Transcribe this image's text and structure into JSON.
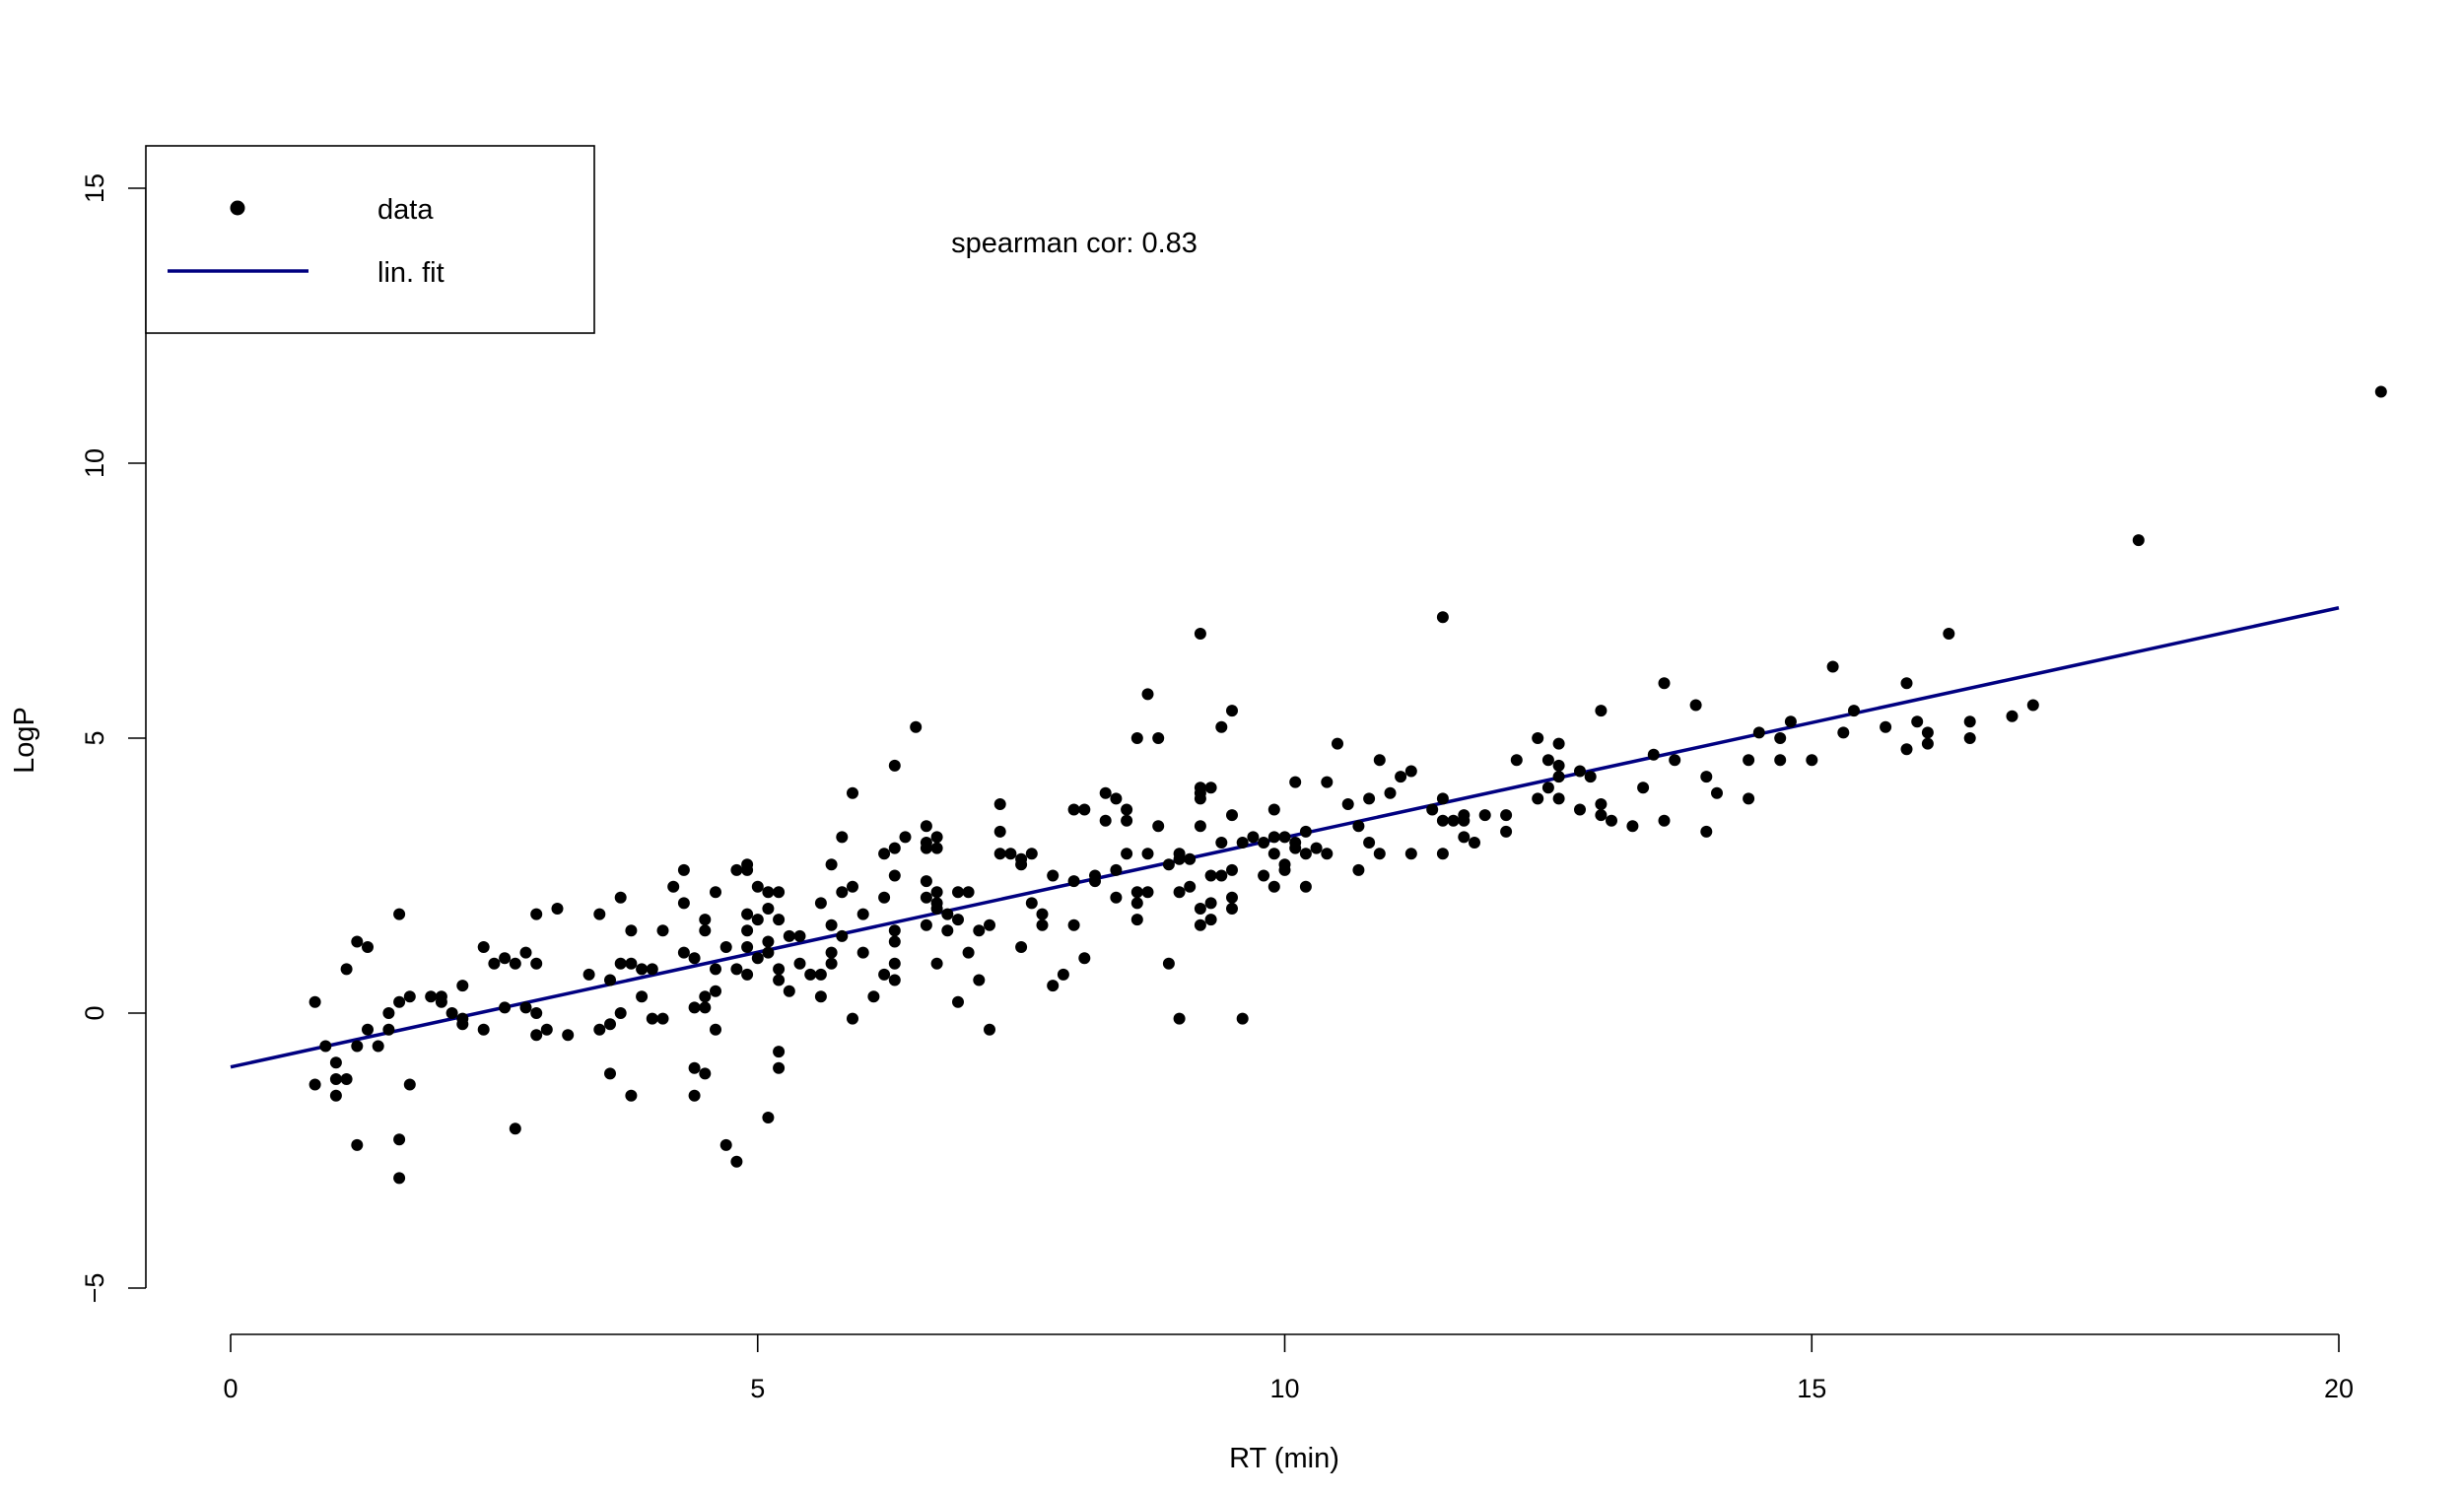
{
  "chart_data": {
    "type": "scatter",
    "title": "",
    "xlabel": "RT (min)",
    "ylabel": "LogP",
    "xlim": [
      0,
      20
    ],
    "ylim": [
      -5,
      15
    ],
    "x_ticks": [
      "0",
      "5",
      "10",
      "15",
      "20"
    ],
    "y_ticks": [
      "-5",
      "0",
      "5",
      "10",
      "15"
    ],
    "grid": false,
    "legend": {
      "placement": "top-left",
      "entries": [
        {
          "label": "data",
          "symbol": "point"
        },
        {
          "label": "lin. fit",
          "symbol": "line"
        }
      ]
    },
    "annotation": "spearman cor: 0.83",
    "series": [
      {
        "name": "data",
        "kind": "points",
        "color": "#000000",
        "points": [
          [
            0.8,
            0.2
          ],
          [
            0.8,
            -1.3
          ],
          [
            0.9,
            -0.6
          ],
          [
            1.0,
            -0.9
          ],
          [
            1.0,
            -1.5
          ],
          [
            1.0,
            -1.2
          ],
          [
            1.1,
            0.8
          ],
          [
            1.1,
            -1.2
          ],
          [
            1.2,
            1.3
          ],
          [
            1.2,
            -0.6
          ],
          [
            1.2,
            -2.4
          ],
          [
            1.3,
            1.2
          ],
          [
            1.3,
            -0.3
          ],
          [
            1.4,
            -0.6
          ],
          [
            1.5,
            0.0
          ],
          [
            1.5,
            -0.3
          ],
          [
            1.6,
            1.8
          ],
          [
            1.6,
            0.2
          ],
          [
            1.6,
            -2.3
          ],
          [
            1.6,
            -3.0
          ],
          [
            1.7,
            0.3
          ],
          [
            1.7,
            -1.3
          ],
          [
            1.9,
            0.3
          ],
          [
            2.0,
            0.3
          ],
          [
            2.0,
            0.2
          ],
          [
            2.1,
            0.0
          ],
          [
            2.2,
            0.5
          ],
          [
            2.2,
            -0.1
          ],
          [
            2.2,
            -0.2
          ],
          [
            2.4,
            1.2
          ],
          [
            2.4,
            -0.3
          ],
          [
            2.5,
            0.9
          ],
          [
            2.6,
            1.0
          ],
          [
            2.6,
            0.1
          ],
          [
            2.7,
            0.9
          ],
          [
            2.7,
            -2.1
          ],
          [
            2.8,
            1.1
          ],
          [
            2.8,
            0.1
          ],
          [
            2.9,
            1.8
          ],
          [
            2.9,
            0.9
          ],
          [
            2.9,
            0.0
          ],
          [
            2.9,
            -0.4
          ],
          [
            3.0,
            -0.3
          ],
          [
            3.1,
            1.9
          ],
          [
            3.2,
            -0.4
          ],
          [
            3.4,
            0.7
          ],
          [
            3.5,
            1.8
          ],
          [
            3.5,
            -0.3
          ],
          [
            3.6,
            0.6
          ],
          [
            3.6,
            -1.1
          ],
          [
            3.6,
            -0.2
          ],
          [
            3.7,
            2.1
          ],
          [
            3.7,
            0.9
          ],
          [
            3.7,
            0.0
          ],
          [
            3.8,
            0.9
          ],
          [
            3.8,
            1.5
          ],
          [
            3.8,
            -1.5
          ],
          [
            3.9,
            0.8
          ],
          [
            3.9,
            0.3
          ],
          [
            4.0,
            0.8
          ],
          [
            4.0,
            -0.1
          ],
          [
            4.1,
            1.5
          ],
          [
            4.1,
            -0.1
          ],
          [
            4.2,
            2.3
          ],
          [
            4.3,
            2.6
          ],
          [
            4.3,
            1.1
          ],
          [
            4.3,
            2.0
          ],
          [
            4.4,
            1.0
          ],
          [
            4.4,
            0.1
          ],
          [
            4.4,
            -1.0
          ],
          [
            4.4,
            -1.5
          ],
          [
            4.5,
            1.7
          ],
          [
            4.5,
            1.5
          ],
          [
            4.5,
            0.3
          ],
          [
            4.5,
            0.1
          ],
          [
            4.5,
            -1.1
          ],
          [
            4.6,
            2.2
          ],
          [
            4.6,
            0.8
          ],
          [
            4.6,
            0.4
          ],
          [
            4.6,
            -0.3
          ],
          [
            4.7,
            1.2
          ],
          [
            4.7,
            -2.4
          ],
          [
            4.8,
            2.6
          ],
          [
            4.8,
            0.8
          ],
          [
            4.8,
            -2.7
          ],
          [
            4.9,
            2.7
          ],
          [
            4.9,
            2.6
          ],
          [
            4.9,
            1.8
          ],
          [
            4.9,
            1.5
          ],
          [
            4.9,
            1.2
          ],
          [
            4.9,
            0.7
          ],
          [
            5.0,
            2.3
          ],
          [
            5.0,
            1.7
          ],
          [
            5.0,
            1.0
          ],
          [
            5.1,
            2.2
          ],
          [
            5.1,
            1.9
          ],
          [
            5.1,
            1.3
          ],
          [
            5.1,
            1.1
          ],
          [
            5.1,
            -1.9
          ],
          [
            5.2,
            2.2
          ],
          [
            5.2,
            1.7
          ],
          [
            5.2,
            0.8
          ],
          [
            5.2,
            0.6
          ],
          [
            5.2,
            -0.7
          ],
          [
            5.2,
            -1.0
          ],
          [
            5.3,
            1.4
          ],
          [
            5.3,
            0.4
          ],
          [
            5.4,
            1.4
          ],
          [
            5.4,
            0.9
          ],
          [
            5.5,
            0.7
          ],
          [
            5.6,
            2.0
          ],
          [
            5.6,
            0.7
          ],
          [
            5.6,
            0.3
          ],
          [
            5.7,
            1.6
          ],
          [
            5.7,
            1.1
          ],
          [
            5.7,
            0.9
          ],
          [
            5.7,
            2.7
          ],
          [
            5.8,
            3.2
          ],
          [
            5.8,
            2.2
          ],
          [
            5.8,
            1.4
          ],
          [
            5.9,
            4.0
          ],
          [
            5.9,
            2.3
          ],
          [
            5.9,
            -0.1
          ],
          [
            6.0,
            1.8
          ],
          [
            6.0,
            1.1
          ],
          [
            6.1,
            0.3
          ],
          [
            6.2,
            2.9
          ],
          [
            6.2,
            2.1
          ],
          [
            6.2,
            0.7
          ],
          [
            6.3,
            4.5
          ],
          [
            6.3,
            3.0
          ],
          [
            6.3,
            2.5
          ],
          [
            6.3,
            1.5
          ],
          [
            6.3,
            1.3
          ],
          [
            6.3,
            0.9
          ],
          [
            6.3,
            0.6
          ],
          [
            6.4,
            3.2
          ],
          [
            6.5,
            5.2
          ],
          [
            6.6,
            3.4
          ],
          [
            6.6,
            3.1
          ],
          [
            6.6,
            2.4
          ],
          [
            6.6,
            2.1
          ],
          [
            6.6,
            1.6
          ],
          [
            6.6,
            3.0
          ],
          [
            6.7,
            3.2
          ],
          [
            6.7,
            3.0
          ],
          [
            6.7,
            2.2
          ],
          [
            6.7,
            2.0
          ],
          [
            6.7,
            1.9
          ],
          [
            6.7,
            0.9
          ],
          [
            6.8,
            1.5
          ],
          [
            6.8,
            1.8
          ],
          [
            6.9,
            2.2
          ],
          [
            6.9,
            0.2
          ],
          [
            6.9,
            1.7
          ],
          [
            7.0,
            2.2
          ],
          [
            7.0,
            1.1
          ],
          [
            7.1,
            0.6
          ],
          [
            7.1,
            1.5
          ],
          [
            7.2,
            1.6
          ],
          [
            7.2,
            -0.3
          ],
          [
            7.3,
            3.8
          ],
          [
            7.3,
            3.3
          ],
          [
            7.3,
            2.9
          ],
          [
            7.4,
            2.9
          ],
          [
            7.5,
            2.8
          ],
          [
            7.5,
            2.7
          ],
          [
            7.5,
            1.2
          ],
          [
            7.6,
            2.9
          ],
          [
            7.6,
            2.0
          ],
          [
            7.7,
            1.6
          ],
          [
            7.7,
            1.8
          ],
          [
            7.8,
            2.5
          ],
          [
            7.8,
            0.5
          ],
          [
            7.9,
            0.7
          ],
          [
            8.0,
            3.7
          ],
          [
            8.0,
            1.6
          ],
          [
            8.0,
            2.4
          ],
          [
            8.1,
            3.7
          ],
          [
            8.1,
            1.0
          ],
          [
            8.2,
            2.5
          ],
          [
            8.2,
            2.4
          ],
          [
            8.3,
            4.0
          ],
          [
            8.3,
            3.5
          ],
          [
            8.4,
            3.9
          ],
          [
            8.4,
            2.6
          ],
          [
            8.4,
            2.1
          ],
          [
            8.5,
            3.7
          ],
          [
            8.5,
            3.5
          ],
          [
            8.5,
            2.9
          ],
          [
            8.6,
            5.0
          ],
          [
            8.6,
            2.2
          ],
          [
            8.6,
            2.0
          ],
          [
            8.6,
            1.7
          ],
          [
            8.7,
            5.8
          ],
          [
            8.7,
            2.9
          ],
          [
            8.7,
            2.2
          ],
          [
            8.8,
            5.0
          ],
          [
            8.8,
            3.4
          ],
          [
            8.9,
            2.7
          ],
          [
            8.9,
            0.9
          ],
          [
            9.0,
            2.9
          ],
          [
            9.0,
            2.8
          ],
          [
            9.0,
            2.2
          ],
          [
            9.0,
            -0.1
          ],
          [
            9.1,
            2.8
          ],
          [
            9.1,
            2.3
          ],
          [
            9.2,
            6.9
          ],
          [
            9.2,
            4.1
          ],
          [
            9.2,
            3.9
          ],
          [
            9.2,
            4.0
          ],
          [
            9.2,
            3.4
          ],
          [
            9.2,
            1.9
          ],
          [
            9.2,
            1.6
          ],
          [
            9.3,
            4.1
          ],
          [
            9.3,
            2.5
          ],
          [
            9.3,
            2.0
          ],
          [
            9.3,
            1.7
          ],
          [
            9.4,
            5.2
          ],
          [
            9.4,
            3.1
          ],
          [
            9.4,
            2.5
          ],
          [
            9.5,
            5.5
          ],
          [
            9.5,
            3.6
          ],
          [
            9.5,
            2.6
          ],
          [
            9.5,
            2.1
          ],
          [
            9.5,
            1.9
          ],
          [
            9.6,
            -0.1
          ],
          [
            9.6,
            3.1
          ],
          [
            9.7,
            3.2
          ],
          [
            9.8,
            2.5
          ],
          [
            9.8,
            3.1
          ],
          [
            9.9,
            3.7
          ],
          [
            9.9,
            3.2
          ],
          [
            9.9,
            2.3
          ],
          [
            9.9,
            2.9
          ],
          [
            10.0,
            3.2
          ],
          [
            10.0,
            2.7
          ],
          [
            10.0,
            2.6
          ],
          [
            10.1,
            4.2
          ],
          [
            10.1,
            3.1
          ],
          [
            10.1,
            3.0
          ],
          [
            10.2,
            3.3
          ],
          [
            10.2,
            2.9
          ],
          [
            10.2,
            2.3
          ],
          [
            10.3,
            3.0
          ],
          [
            10.4,
            4.2
          ],
          [
            10.4,
            2.9
          ],
          [
            10.5,
            4.9
          ],
          [
            10.6,
            3.8
          ],
          [
            10.7,
            3.4
          ],
          [
            10.7,
            2.6
          ],
          [
            10.8,
            3.9
          ],
          [
            10.8,
            3.1
          ],
          [
            10.9,
            4.6
          ],
          [
            10.9,
            2.9
          ],
          [
            11.0,
            4.0
          ],
          [
            11.1,
            4.3
          ],
          [
            11.2,
            4.4
          ],
          [
            11.2,
            2.9
          ],
          [
            11.4,
            3.7
          ],
          [
            11.5,
            7.2
          ],
          [
            11.5,
            3.9
          ],
          [
            11.5,
            3.5
          ],
          [
            11.5,
            2.9
          ],
          [
            11.6,
            3.5
          ],
          [
            11.7,
            3.6
          ],
          [
            11.7,
            3.5
          ],
          [
            11.7,
            3.2
          ],
          [
            11.8,
            3.1
          ],
          [
            11.9,
            3.6
          ],
          [
            12.1,
            3.3
          ],
          [
            12.1,
            3.6
          ],
          [
            12.2,
            4.6
          ],
          [
            12.4,
            5.0
          ],
          [
            12.4,
            3.9
          ],
          [
            12.5,
            4.6
          ],
          [
            12.5,
            4.1
          ],
          [
            12.6,
            4.9
          ],
          [
            12.6,
            4.5
          ],
          [
            12.6,
            4.3
          ],
          [
            12.6,
            3.9
          ],
          [
            12.8,
            4.4
          ],
          [
            12.8,
            3.7
          ],
          [
            12.9,
            4.3
          ],
          [
            13.0,
            5.5
          ],
          [
            13.0,
            3.8
          ],
          [
            13.0,
            3.6
          ],
          [
            13.1,
            3.5
          ],
          [
            13.3,
            3.4
          ],
          [
            13.4,
            4.1
          ],
          [
            13.5,
            4.7
          ],
          [
            13.6,
            6.0
          ],
          [
            13.6,
            3.5
          ],
          [
            13.7,
            4.6
          ],
          [
            13.9,
            5.6
          ],
          [
            14.0,
            4.3
          ],
          [
            14.0,
            3.3
          ],
          [
            14.1,
            4.0
          ],
          [
            14.4,
            4.6
          ],
          [
            14.4,
            3.9
          ],
          [
            14.5,
            5.1
          ],
          [
            14.7,
            5.0
          ],
          [
            14.7,
            4.6
          ],
          [
            14.8,
            5.3
          ],
          [
            15.0,
            4.6
          ],
          [
            15.2,
            6.3
          ],
          [
            15.3,
            5.1
          ],
          [
            15.4,
            5.5
          ],
          [
            15.7,
            5.2
          ],
          [
            15.9,
            6.0
          ],
          [
            15.9,
            4.8
          ],
          [
            16.0,
            5.3
          ],
          [
            16.1,
            5.1
          ],
          [
            16.1,
            4.9
          ],
          [
            16.3,
            6.9
          ],
          [
            16.5,
            5.3
          ],
          [
            16.5,
            5.0
          ],
          [
            16.9,
            5.4
          ],
          [
            17.1,
            5.6
          ],
          [
            18.1,
            8.6
          ],
          [
            20.4,
            11.3
          ]
        ]
      },
      {
        "name": "lin. fit",
        "kind": "line",
        "color": "#000080",
        "points": [
          [
            0,
            -0.98
          ],
          [
            20,
            7.37
          ]
        ]
      }
    ]
  }
}
